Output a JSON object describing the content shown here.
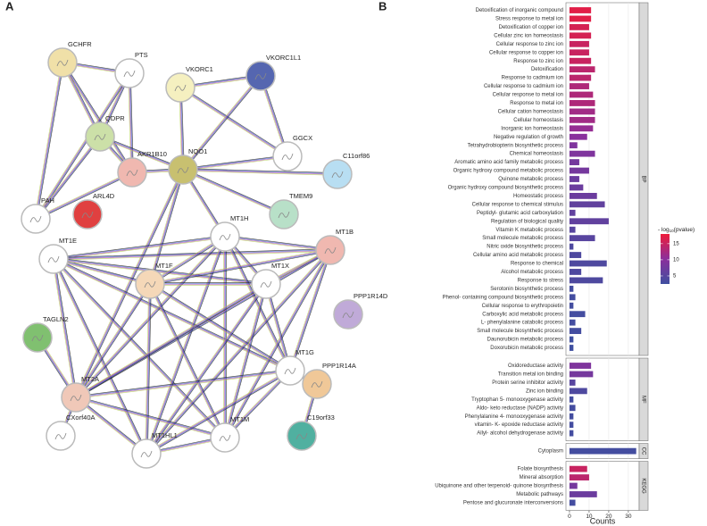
{
  "panel_labels": [
    "A",
    "B"
  ],
  "network": {
    "nodes": [
      "GCHFR",
      "PTS",
      "VKORC1",
      "VKORC1L1",
      "QDPR",
      "AKR1B10",
      "NQO1",
      "GGCX",
      "C11orf86",
      "TMEM9",
      "ARL4D",
      "PAH",
      "MT1E",
      "MT1H",
      "MT1B",
      "MT1F",
      "MT1X",
      "PPP1R14D",
      "TAGLN2",
      "MT2A",
      "MT1G",
      "PPP1R14A",
      "C19orf33",
      "CXorf40A",
      "MT1HL1",
      "MT1M"
    ]
  },
  "chart_data": {
    "type": "bar",
    "orientation": "horizontal",
    "xlabel": "Counts",
    "xlim": [
      -1.8,
      35.5
    ],
    "xticks": [
      0,
      10,
      20,
      30
    ],
    "grid": true,
    "legend_title": [
      "- log",
      "10",
      "(pvalue)"
    ],
    "color_lim": [
      2.5,
      18
    ],
    "color_ticks": [
      5,
      10,
      15
    ],
    "colors": [
      "#3f4fa0",
      "#8b2f9c",
      "#ee1c3a"
    ],
    "facets": [
      {
        "name": "BP",
        "categories": [
          "Detoxification of inorganic compound",
          "Stress response to metal ion",
          "Detoxification of copper ion",
          "Cellular zinc ion homeostasis",
          "Cellular response to zinc ion",
          "Cellular response to copper ion",
          "Response to zinc ion",
          "Detoxification",
          "Response to cadmium ion",
          "Cellular response to cadmium ion",
          "Cellular response to metal ion",
          "Response to metal ion",
          "Cellular cation homeostasis",
          "Cellular homeostasis",
          "Inorganic ion homeostasis",
          "Negative regulation of growth",
          "Tetrahydrobiopterin biosynthetic process",
          "Chemical homeostasis",
          "Aromatic amino acid family metabolic process",
          "Organic hydroxy compound metabolic process",
          "Quinone metabolic process",
          "Organic hydroxy compound biosynthetic process",
          "Homeostatic process",
          "Cellular response to chemical stimulus",
          "Peptidyl- glutamic acid carboxylation",
          "Regulation of biological quality",
          "Vitamin K metabolic process",
          "Small molecule metabolic process",
          "Nitric oxide biosynthetic process",
          "Cellular amino acid metabolic process",
          "Response to chemical",
          "Alcohol metabolic process",
          "Response to stress",
          "Serotonin biosynthetic process",
          "Phenol- containing compound biosynthetic process",
          "Cellular response to erythropoietin",
          "Carboxylic acid metabolic process",
          "L- phenylalanine catabolic process",
          "Small molecule biosynthetic process",
          "Daunorubicin metabolic process",
          "Doxorubicin metabolic process"
        ],
        "values": [
          11,
          11,
          10,
          11,
          10,
          10,
          11,
          13,
          11,
          10,
          12,
          13,
          13,
          13,
          12,
          9,
          4,
          13,
          5,
          10,
          5,
          7,
          14,
          18,
          3,
          20,
          3,
          13,
          2,
          6,
          19,
          6,
          17,
          2,
          3,
          2,
          8,
          3,
          6,
          2,
          2
        ],
        "color_values": [
          17,
          17,
          16,
          16,
          15,
          15,
          15,
          14,
          14,
          13,
          13,
          13,
          12,
          12,
          11,
          10,
          9,
          9,
          8,
          8,
          7,
          7,
          7,
          6,
          6,
          6,
          5,
          5,
          4,
          4,
          4,
          4,
          4,
          3,
          3,
          3,
          3,
          3,
          3,
          2.5,
          2.5
        ]
      },
      {
        "name": "MF",
        "categories": [
          "Oxidoreductase activity",
          "Transition metal ion binding",
          "Protein serine inhibitor activity",
          "Zinc ion binding",
          "Tryptophan 5- monooxygenase activity",
          "Aldo- keto reductase (NADP) activity",
          "Phenylalanine 4- monooxygenase activity",
          "vitamin- K- epoxide reductase activity",
          "Allyl- alcohol dehydrogenase activity"
        ],
        "values": [
          11,
          12,
          3,
          9,
          2,
          3,
          2,
          2,
          2
        ],
        "color_values": [
          9,
          8,
          5,
          4,
          3,
          3,
          3,
          3,
          3
        ]
      },
      {
        "name": "CC",
        "categories": [
          "Cytoplasm"
        ],
        "values": [
          34
        ],
        "color_values": [
          3
        ]
      },
      {
        "name": "KEGG",
        "categories": [
          "Folate biosynthesis",
          "Mineral absorption",
          "Ubiquinone and other terpenoid- quinone biosynthesis",
          "Metabolic pathways",
          "Pentose and glucuronate interconversions"
        ],
        "values": [
          9,
          10,
          4,
          14,
          3
        ],
        "color_values": [
          15,
          14,
          8,
          7,
          3
        ]
      }
    ]
  }
}
